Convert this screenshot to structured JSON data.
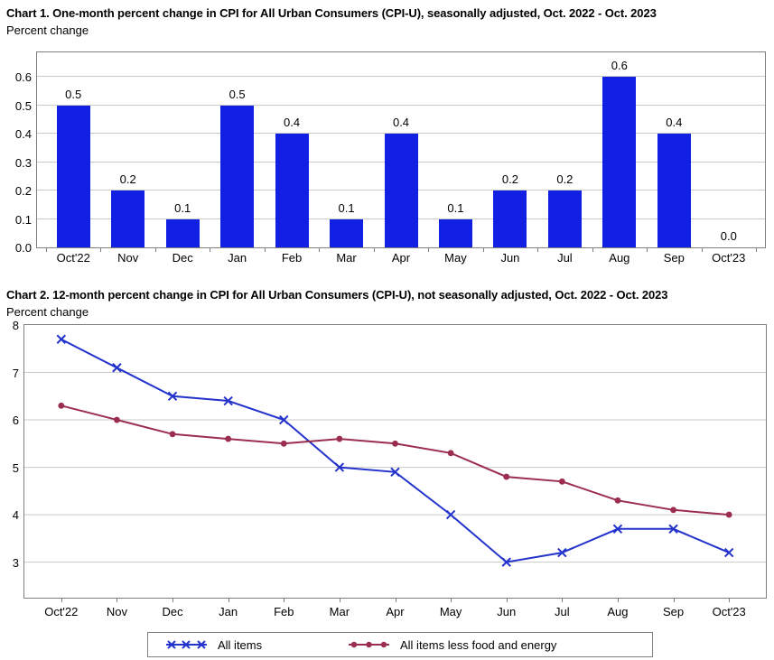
{
  "colors": {
    "bar_blue": "#1120e2",
    "line_blue": "#2333cc",
    "line_maroon": "#9b2d4e",
    "grid": "#c9c9c9",
    "frame": "#7f7f7f"
  },
  "chart_data": [
    {
      "type": "bar",
      "title": "Chart 1. One-month percent change in CPI for All Urban Consumers (CPI-U), seasonally adjusted, Oct. 2022 - Oct. 2023",
      "ylabel": "Percent change",
      "categories": [
        "Oct'22",
        "Nov",
        "Dec",
        "Jan",
        "Feb",
        "Mar",
        "Apr",
        "May",
        "Jun",
        "Jul",
        "Aug",
        "Sep",
        "Oct'23"
      ],
      "values": [
        0.5,
        0.2,
        0.1,
        0.5,
        0.4,
        0.1,
        0.4,
        0.1,
        0.2,
        0.2,
        0.6,
        0.4,
        0.0
      ],
      "yticks": [
        0.0,
        0.1,
        0.2,
        0.3,
        0.4,
        0.5,
        0.6
      ],
      "ylim": [
        0,
        0.686
      ],
      "grid": true,
      "data_labels": true,
      "bar_color": "#1120e2"
    },
    {
      "type": "line",
      "title": "Chart 2. 12-month percent change in CPI for All Urban Consumers (CPI-U), not seasonally adjusted, Oct. 2022 - Oct. 2023",
      "ylabel": "Percent change",
      "categories": [
        "Oct'22",
        "Nov",
        "Dec",
        "Jan",
        "Feb",
        "Mar",
        "Apr",
        "May",
        "Jun",
        "Jul",
        "Aug",
        "Sep",
        "Oct'23"
      ],
      "series": [
        {
          "name": "All items",
          "marker": "x",
          "color": "#2333cc",
          "values": [
            7.7,
            7.1,
            6.5,
            6.4,
            6.0,
            5.0,
            4.9,
            4.0,
            3.0,
            3.2,
            3.7,
            3.7,
            3.2
          ]
        },
        {
          "name": "All items less food and energy",
          "marker": "dot",
          "color": "#9b2d4e",
          "values": [
            6.3,
            6.0,
            5.7,
            5.6,
            5.5,
            5.6,
            5.5,
            5.3,
            4.8,
            4.7,
            4.3,
            4.1,
            4.0
          ]
        }
      ],
      "yticks": [
        3,
        4,
        5,
        6,
        7,
        8
      ],
      "ylim": [
        2.25,
        8
      ],
      "grid": true,
      "legend_position": "bottom"
    }
  ]
}
